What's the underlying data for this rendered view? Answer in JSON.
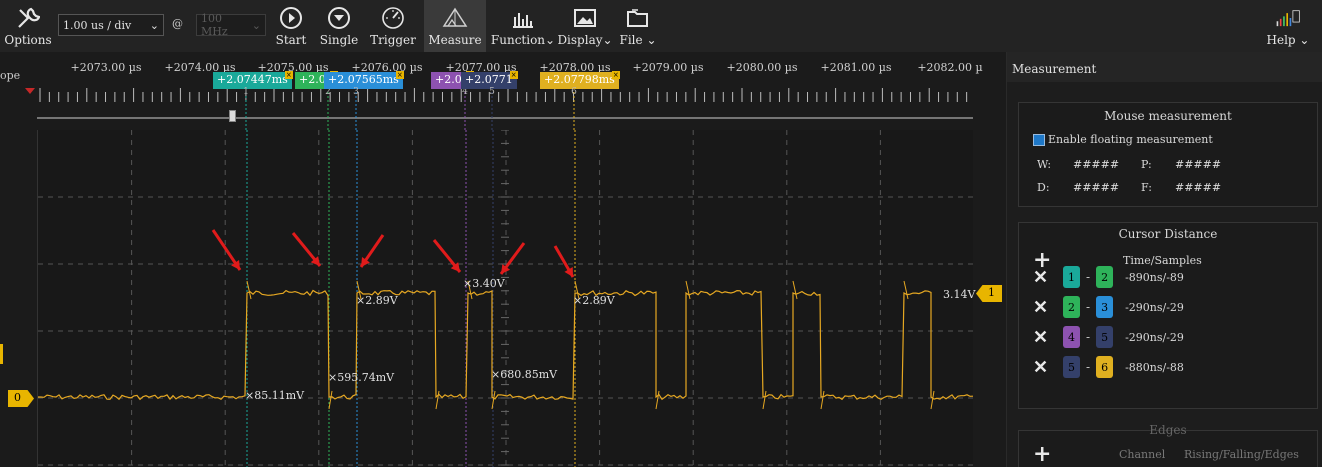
{
  "toolbar": {
    "options_label": "Options",
    "time_div": "1.00 us / div",
    "at_symbol": "@",
    "sample_rate": "100 MHz",
    "start_label": "Start",
    "single_label": "Single",
    "trigger_label": "Trigger",
    "measure_label": "Measure",
    "function_label": "Function",
    "display_label": "Display",
    "file_label": "File",
    "help_label": "Help"
  },
  "left": {
    "scope_text": "ope"
  },
  "ruler": {
    "ticks": [
      "+2073.00 µs",
      "+2074.00 µs",
      "+2075.00 µs",
      "+2076.00 µs",
      "+2077.00 µs",
      "+2078.00 µs",
      "+2079.00 µs",
      "+2080.00 µs",
      "+2081.00 µs",
      "+2082.00 µ"
    ],
    "cursors": [
      {
        "num": "1",
        "label": "+2.07447ms",
        "color": "#1aa99a"
      },
      {
        "num": "2",
        "label": "+2.07",
        "color": "#2eb35a"
      },
      {
        "num": "3",
        "label": "+2.07565ms",
        "color": "#2a8fd8"
      },
      {
        "num": "4",
        "label": "+2.07",
        "color": "#8d52b0"
      },
      {
        "num": "5",
        "label": "+2.0771",
        "color": "#34406a"
      },
      {
        "num": "6",
        "label": "+2.07798ms",
        "color": "#e0b020"
      }
    ]
  },
  "plot": {
    "channel0": "0",
    "channel1": "1",
    "labels": {
      "v1": "85.11mV",
      "v2": "595.74mV",
      "v3": "2.89V",
      "v4": "3.40V",
      "v5": "680.85mV",
      "v6": "2.89V",
      "level": "3.14V"
    }
  },
  "panel": {
    "title": "Measurement",
    "mouse_title": "Mouse measurement",
    "enable_label": "Enable floating measurement",
    "w_label": "W:",
    "w_val": "#####",
    "p_label": "P:",
    "p_val": "#####",
    "d_label": "D:",
    "d_val": "#####",
    "f_label": "F:",
    "f_val": "#####",
    "cursor_title": "Cursor Distance",
    "ts_header": "Time/Samples",
    "rows": [
      {
        "a": "1",
        "b": "2",
        "ac": "#1aa99a",
        "bc": "#2eb35a",
        "val": "-890ns/-89"
      },
      {
        "a": "2",
        "b": "3",
        "ac": "#2eb35a",
        "bc": "#2a8fd8",
        "val": "-290ns/-29"
      },
      {
        "a": "4",
        "b": "5",
        "ac": "#8d52b0",
        "bc": "#34406a",
        "val": "-290ns/-29"
      },
      {
        "a": "5",
        "b": "6",
        "ac": "#34406a",
        "bc": "#e0b020",
        "val": "-880ns/-88"
      }
    ],
    "edges_title": "Edges",
    "channel_header": "Channel",
    "rfe_header": "Rising/Falling/Edges"
  },
  "colors": {
    "signal": "#e6a822",
    "accent": "#e8b500",
    "arrow": "#e01b1b"
  }
}
